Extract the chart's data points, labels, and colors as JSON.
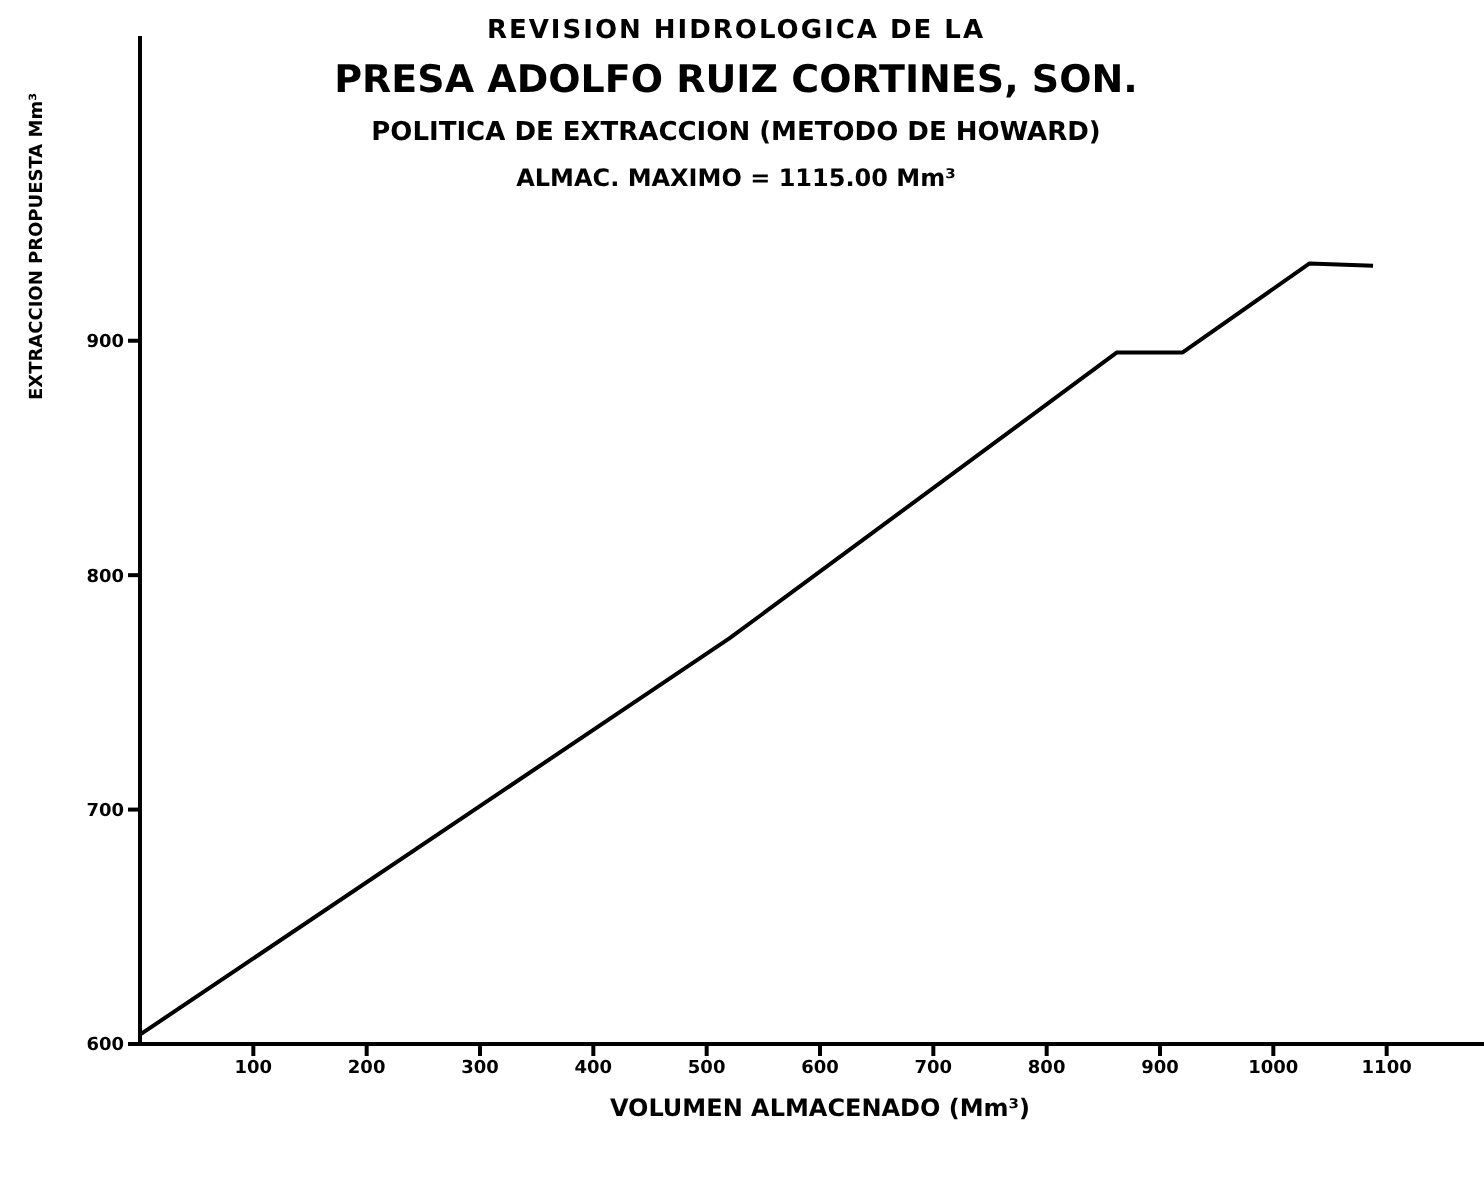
{
  "chart_data": {
    "type": "line",
    "title": "REVISION HIDROLOGICA DE LA",
    "subtitle": "PRESA ADOLFO RUIZ CORTINES, SON.",
    "annotations": [
      "POLITICA DE EXTRACCION (METODO DE HOWARD)",
      "ALMAC. MAXIMO = 1115.00 Mm³"
    ],
    "xlabel": "VOLUMEN ALMACENADO (Mm³)",
    "ylabel": "EXTRACCION PROPUESTA Mm³",
    "x": [
      0,
      520,
      862,
      920,
      1032,
      1088
    ],
    "series": [
      {
        "color": "#000000",
        "values": [
          604,
          773,
          895,
          895,
          933,
          932
        ]
      }
    ],
    "xlim": [
      0,
      1200
    ],
    "xticks": [
      100,
      200,
      300,
      400,
      500,
      600,
      700,
      800,
      900,
      1000,
      1100
    ],
    "ylim": [
      600,
      1030
    ],
    "yticks": [
      600,
      700,
      800,
      900
    ],
    "grid": false,
    "legend": false,
    "marker": "none",
    "line_style": "solid"
  }
}
